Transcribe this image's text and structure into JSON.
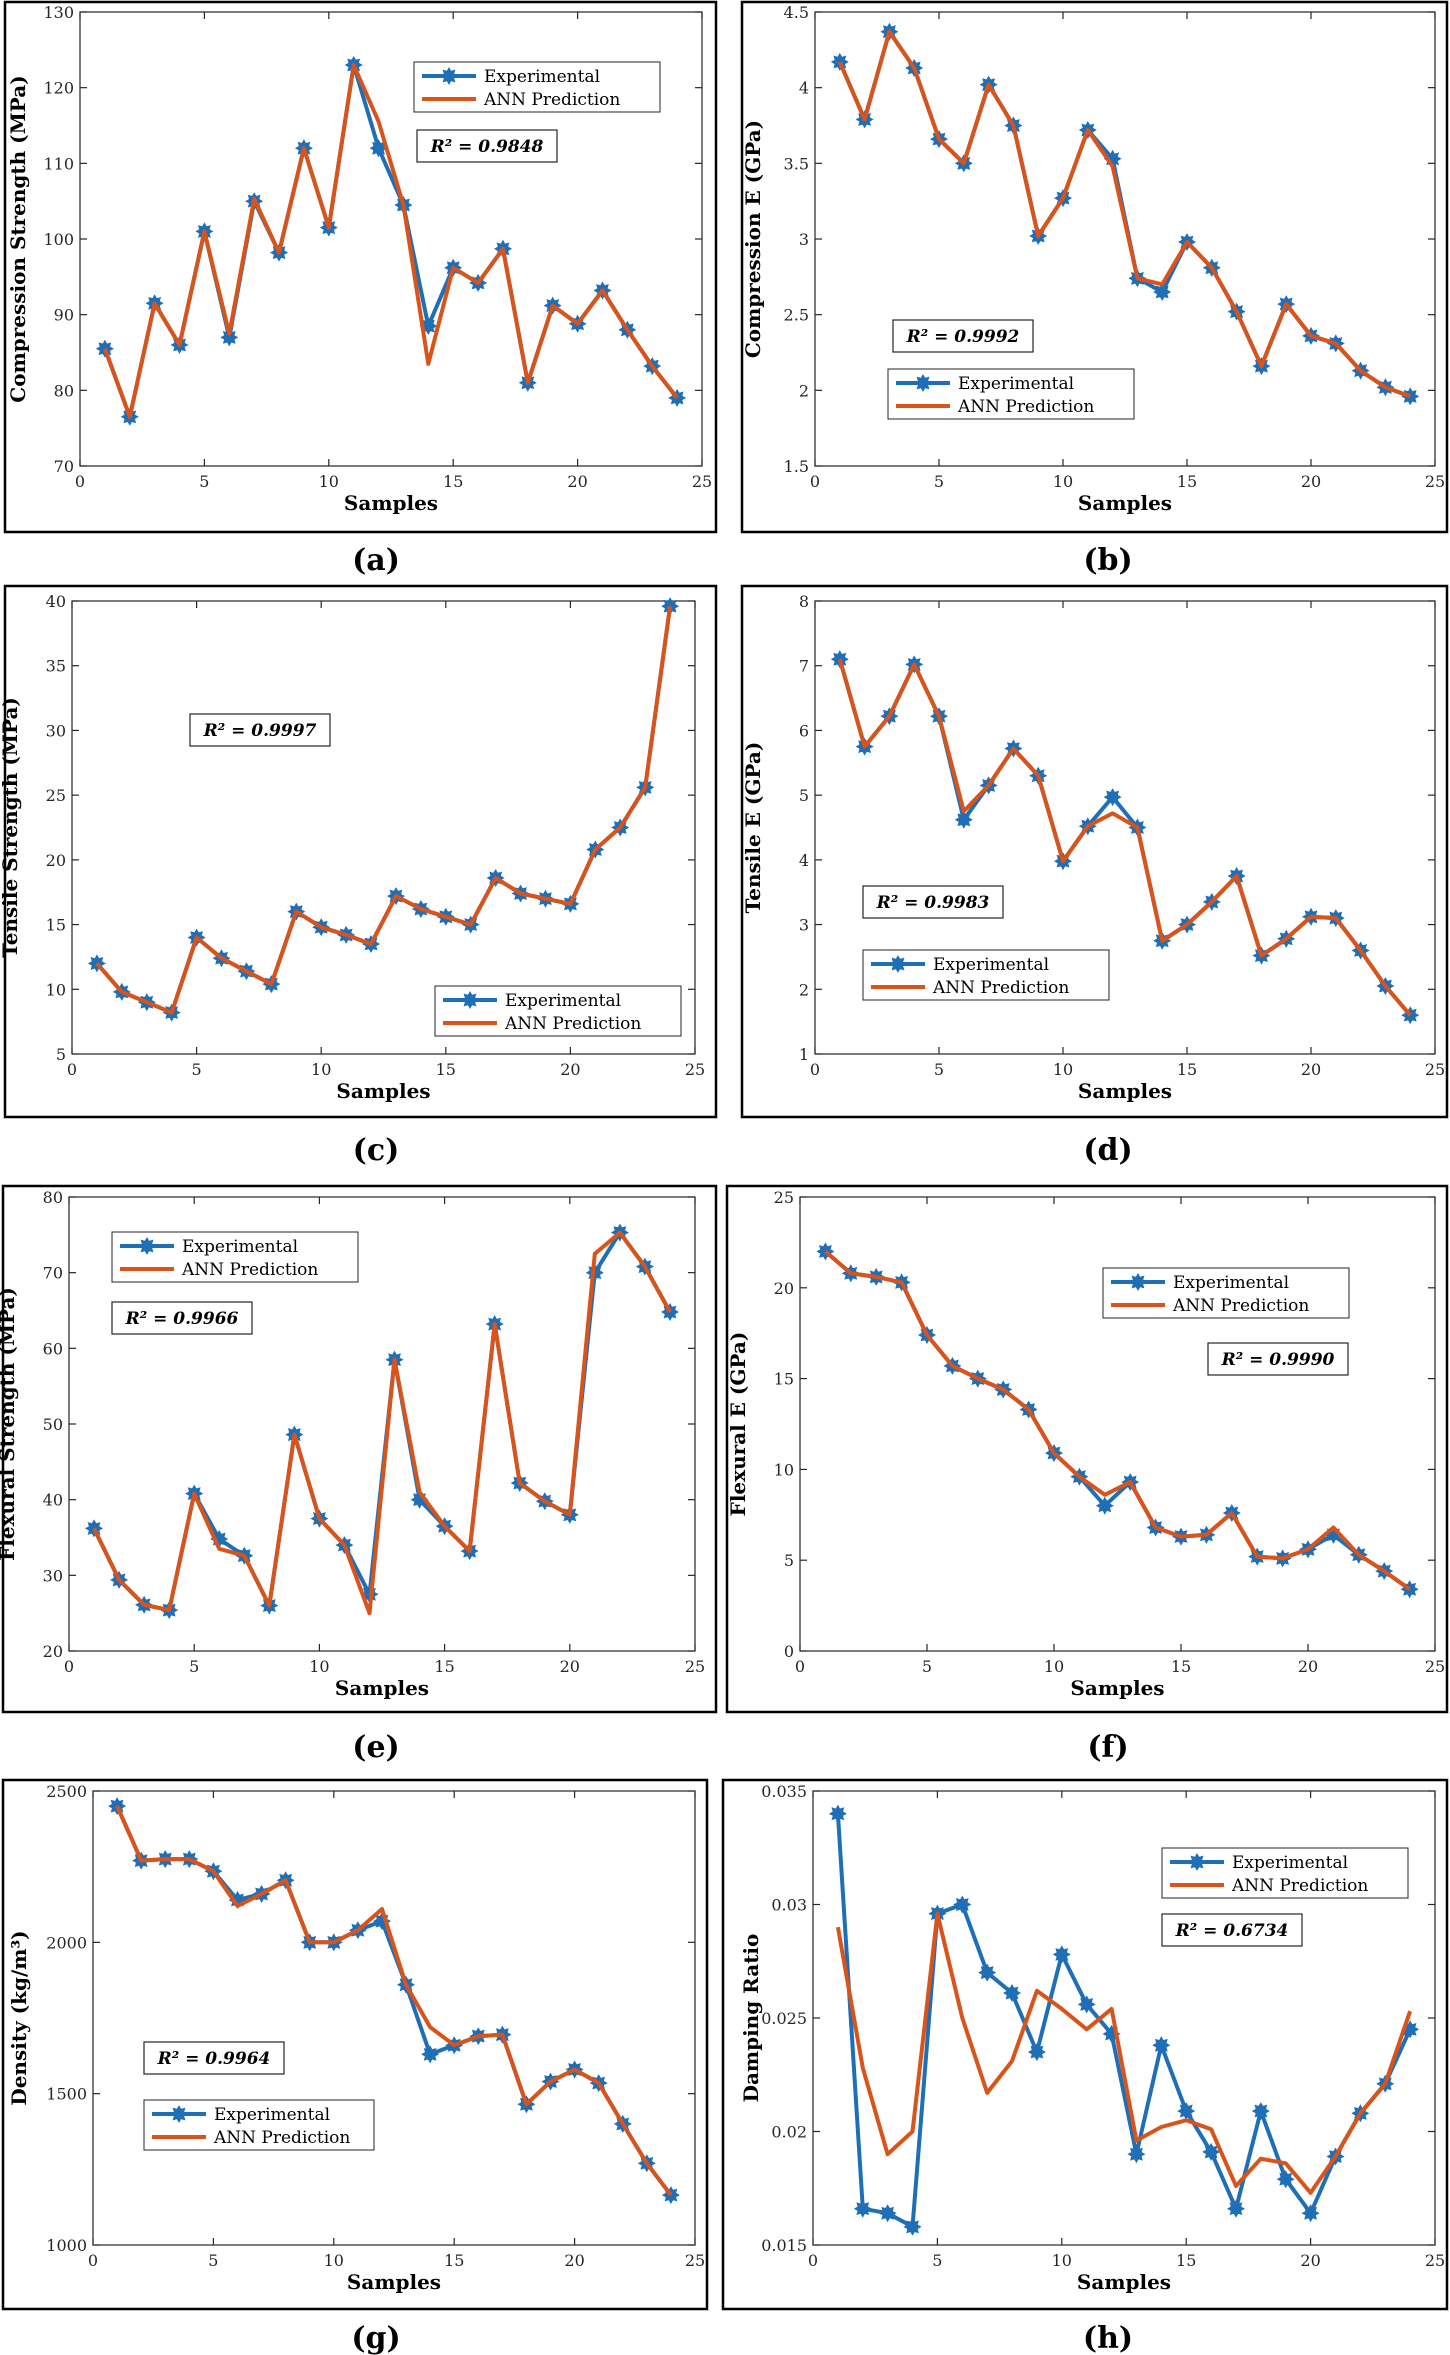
{
  "colors": {
    "experimental": "#1f6fb8",
    "ann": "#d9541a",
    "axis": "#262626"
  },
  "chart_data": [
    {
      "type": "line",
      "panel": "(a)",
      "xlabel": "Samples",
      "ylabel": "Compression Strength (MPa)",
      "xlim": [
        0,
        25
      ],
      "ylim": [
        70,
        130
      ],
      "xticks": [
        0,
        5,
        10,
        15,
        20,
        25
      ],
      "yticks": [
        70,
        80,
        90,
        100,
        110,
        120,
        130
      ],
      "r2": "R² = 0.9848",
      "legend_position": "top-right",
      "x": [
        1,
        2,
        3,
        4,
        5,
        6,
        7,
        8,
        9,
        10,
        11,
        12,
        13,
        14,
        15,
        16,
        17,
        18,
        19,
        20,
        21,
        22,
        23,
        24
      ],
      "series": [
        {
          "name": "Experimental",
          "values": [
            85.5,
            76.5,
            91.5,
            86,
            101,
            87,
            105,
            98.2,
            112,
            101.5,
            123,
            112,
            104.5,
            88.5,
            96.2,
            94.2,
            98.7,
            81,
            91.2,
            88.8,
            93.2,
            88,
            83.2,
            79
          ]
        },
        {
          "name": "ANN Prediction",
          "values": [
            85.5,
            76.5,
            91.5,
            86,
            101,
            87.5,
            105.3,
            98.2,
            112,
            101.5,
            123,
            115.5,
            104.5,
            83.5,
            96.2,
            94.2,
            98.7,
            81,
            91.2,
            88.8,
            93.2,
            88,
            83.2,
            79
          ]
        }
      ]
    },
    {
      "type": "line",
      "panel": "(b)",
      "xlabel": "Samples",
      "ylabel": "Compression E (GPa)",
      "xlim": [
        0,
        25
      ],
      "ylim": [
        1.5,
        4.5
      ],
      "xticks": [
        0,
        5,
        10,
        15,
        20,
        25
      ],
      "yticks": [
        1.5,
        2,
        2.5,
        3,
        3.5,
        4,
        4.5
      ],
      "r2": "R² = 0.9992",
      "legend_position": "bottom-left",
      "x": [
        1,
        2,
        3,
        4,
        5,
        6,
        7,
        8,
        9,
        10,
        11,
        12,
        13,
        14,
        15,
        16,
        17,
        18,
        19,
        20,
        21,
        22,
        23,
        24
      ],
      "series": [
        {
          "name": "Experimental",
          "values": [
            4.17,
            3.79,
            4.37,
            4.13,
            3.66,
            3.5,
            4.02,
            3.75,
            3.02,
            3.27,
            3.72,
            3.53,
            2.74,
            2.65,
            2.98,
            2.81,
            2.52,
            2.16,
            2.57,
            2.36,
            2.31,
            2.13,
            2.02,
            1.96
          ]
        },
        {
          "name": "ANN Prediction",
          "values": [
            4.17,
            3.79,
            4.37,
            4.13,
            3.66,
            3.5,
            4.02,
            3.75,
            3.02,
            3.27,
            3.72,
            3.48,
            2.74,
            2.7,
            2.98,
            2.81,
            2.52,
            2.16,
            2.57,
            2.36,
            2.31,
            2.13,
            2.02,
            1.96
          ]
        }
      ]
    },
    {
      "type": "line",
      "panel": "(c)",
      "xlabel": "Samples",
      "ylabel": "Tensile Strength (MPa)",
      "xlim": [
        0,
        25
      ],
      "ylim": [
        5,
        40
      ],
      "xticks": [
        0,
        5,
        10,
        15,
        20,
        25
      ],
      "yticks": [
        5,
        10,
        15,
        20,
        25,
        30,
        35,
        40
      ],
      "r2": "R² = 0.9997",
      "legend_position": "bottom-right",
      "x": [
        1,
        2,
        3,
        4,
        5,
        6,
        7,
        8,
        9,
        10,
        11,
        12,
        13,
        14,
        15,
        16,
        17,
        18,
        19,
        20,
        21,
        22,
        23,
        24
      ],
      "series": [
        {
          "name": "Experimental",
          "values": [
            12,
            9.8,
            9,
            8.2,
            14,
            12.4,
            11.4,
            10.4,
            16,
            14.8,
            14.2,
            13.5,
            17.2,
            16.2,
            15.6,
            15,
            18.6,
            17.4,
            17,
            16.6,
            20.8,
            22.5,
            25.6,
            39.6
          ]
        },
        {
          "name": "ANN Prediction",
          "values": [
            12,
            9.8,
            9,
            8.2,
            14,
            12.4,
            11.4,
            10.4,
            16,
            14.8,
            14.2,
            13.5,
            17.2,
            16.2,
            15.6,
            15,
            18.6,
            17.4,
            17,
            16.6,
            20.8,
            22.5,
            25.6,
            39.6
          ]
        }
      ]
    },
    {
      "type": "line",
      "panel": "(d)",
      "xlabel": "Samples",
      "ylabel": "Tensile E (GPa)",
      "xlim": [
        0,
        25
      ],
      "ylim": [
        1,
        8
      ],
      "xticks": [
        0,
        5,
        10,
        15,
        20,
        25
      ],
      "yticks": [
        1,
        2,
        3,
        4,
        5,
        6,
        7,
        8
      ],
      "r2": "R² = 0.9983",
      "legend_position": "bottom-left",
      "x": [
        1,
        2,
        3,
        4,
        5,
        6,
        7,
        8,
        9,
        10,
        11,
        12,
        13,
        14,
        15,
        16,
        17,
        18,
        19,
        20,
        21,
        22,
        23,
        24
      ],
      "series": [
        {
          "name": "Experimental",
          "values": [
            7.1,
            5.75,
            6.22,
            7.02,
            6.22,
            4.62,
            5.15,
            5.72,
            5.3,
            3.98,
            4.52,
            4.97,
            4.5,
            2.75,
            3,
            3.35,
            3.75,
            2.52,
            2.78,
            3.12,
            3.1,
            2.6,
            2.05,
            1.6
          ]
        },
        {
          "name": "ANN Prediction",
          "values": [
            7.1,
            5.75,
            6.22,
            7.02,
            6.22,
            4.75,
            5.15,
            5.72,
            5.3,
            3.98,
            4.52,
            4.72,
            4.5,
            2.75,
            3,
            3.35,
            3.75,
            2.52,
            2.78,
            3.12,
            3.1,
            2.6,
            2.05,
            1.6
          ]
        }
      ]
    },
    {
      "type": "line",
      "panel": "(e)",
      "xlabel": "Samples",
      "ylabel": "Flexural Strength (MPa)",
      "xlim": [
        0,
        25
      ],
      "ylim": [
        20,
        80
      ],
      "xticks": [
        0,
        5,
        10,
        15,
        20,
        25
      ],
      "yticks": [
        20,
        30,
        40,
        50,
        60,
        70,
        80
      ],
      "r2": "R² = 0.9966",
      "legend_position": "top-left",
      "x": [
        1,
        2,
        3,
        4,
        5,
        6,
        7,
        8,
        9,
        10,
        11,
        12,
        13,
        14,
        15,
        16,
        17,
        18,
        19,
        20,
        21,
        22,
        23,
        24
      ],
      "series": [
        {
          "name": "Experimental",
          "values": [
            36.2,
            29.4,
            26.1,
            25.4,
            40.8,
            34.8,
            32.6,
            26,
            48.6,
            37.5,
            34,
            27.5,
            58.5,
            40,
            36.5,
            33.2,
            63.2,
            42.2,
            39.8,
            38,
            70,
            75.3,
            70.8,
            64.8
          ]
        },
        {
          "name": "ANN Prediction",
          "values": [
            36.2,
            29.4,
            26.1,
            25.4,
            40.8,
            33.5,
            32.6,
            26,
            48.6,
            37.5,
            34,
            25,
            58.5,
            41,
            36.5,
            33.2,
            63.2,
            42.2,
            39.8,
            38,
            72.5,
            75.3,
            70.8,
            64.8
          ]
        }
      ]
    },
    {
      "type": "line",
      "panel": "(f)",
      "xlabel": "Samples",
      "ylabel": "Flexural E (GPa)",
      "xlim": [
        0,
        25
      ],
      "ylim": [
        0,
        25
      ],
      "xticks": [
        0,
        5,
        10,
        15,
        20,
        25
      ],
      "yticks": [
        0,
        5,
        10,
        15,
        20,
        25
      ],
      "r2": "R² = 0.9990",
      "legend_position": "top-right",
      "x": [
        1,
        2,
        3,
        4,
        5,
        6,
        7,
        8,
        9,
        10,
        11,
        12,
        13,
        14,
        15,
        16,
        17,
        18,
        19,
        20,
        21,
        22,
        23,
        24
      ],
      "series": [
        {
          "name": "Experimental",
          "values": [
            22,
            20.8,
            20.6,
            20.3,
            17.4,
            15.7,
            15,
            14.4,
            13.3,
            10.9,
            9.6,
            8,
            9.3,
            6.8,
            6.3,
            6.4,
            7.6,
            5.2,
            5.1,
            5.6,
            6.4,
            5.3,
            4.4,
            3.4
          ]
        },
        {
          "name": "ANN Prediction",
          "values": [
            22,
            20.8,
            20.6,
            20.3,
            17.4,
            15.7,
            15,
            14.4,
            13.3,
            10.9,
            9.6,
            8.6,
            9.3,
            6.8,
            6.3,
            6.4,
            7.6,
            5.2,
            5.1,
            5.6,
            6.8,
            5.3,
            4.4,
            3.4
          ]
        }
      ]
    },
    {
      "type": "line",
      "panel": "(g)",
      "xlabel": "Samples",
      "ylabel": "Density (kg/m³)",
      "xlim": [
        0,
        25
      ],
      "ylim": [
        1000,
        2500
      ],
      "xticks": [
        0,
        5,
        10,
        15,
        20,
        25
      ],
      "yticks": [
        1000,
        1500,
        2000,
        2500
      ],
      "r2": "R² = 0.9964",
      "legend_position": "bottom-left",
      "x": [
        1,
        2,
        3,
        4,
        5,
        6,
        7,
        8,
        9,
        10,
        11,
        12,
        13,
        14,
        15,
        16,
        17,
        18,
        19,
        20,
        21,
        22,
        23,
        24
      ],
      "series": [
        {
          "name": "Experimental",
          "values": [
            2450,
            2270,
            2275,
            2275,
            2235,
            2140,
            2160,
            2205,
            2000,
            2000,
            2040,
            2070,
            1860,
            1630,
            1660,
            1690,
            1695,
            1465,
            1540,
            1580,
            1535,
            1400,
            1270,
            1165
          ]
        },
        {
          "name": "ANN Prediction",
          "values": [
            2450,
            2270,
            2275,
            2275,
            2235,
            2120,
            2160,
            2205,
            2000,
            2000,
            2040,
            2110,
            1860,
            1720,
            1660,
            1690,
            1695,
            1465,
            1540,
            1580,
            1535,
            1400,
            1270,
            1165
          ]
        }
      ]
    },
    {
      "type": "line",
      "panel": "(h)",
      "xlabel": "Samples",
      "ylabel": "Damping Ratio",
      "xlim": [
        0,
        25
      ],
      "ylim": [
        0.015,
        0.035
      ],
      "xticks": [
        0,
        5,
        10,
        15,
        20,
        25
      ],
      "yticks": [
        0.015,
        0.02,
        0.025,
        0.03,
        0.035
      ],
      "r2": "R² = 0.6734",
      "legend_position": "top-right",
      "x": [
        1,
        2,
        3,
        4,
        5,
        6,
        7,
        8,
        9,
        10,
        11,
        12,
        13,
        14,
        15,
        16,
        17,
        18,
        19,
        20,
        21,
        22,
        23,
        24
      ],
      "series": [
        {
          "name": "Experimental",
          "values": [
            0.034,
            0.0166,
            0.0164,
            0.0158,
            0.0296,
            0.03,
            0.027,
            0.0261,
            0.0235,
            0.0278,
            0.0256,
            0.0243,
            0.019,
            0.0238,
            0.0209,
            0.0191,
            0.0166,
            0.0209,
            0.0179,
            0.0164,
            0.0189,
            0.0208,
            0.0221,
            0.0245
          ]
        },
        {
          "name": "ANN Prediction",
          "values": [
            0.029,
            0.0228,
            0.019,
            0.02,
            0.0296,
            0.025,
            0.0217,
            0.0231,
            0.0262,
            0.0254,
            0.0245,
            0.0254,
            0.0196,
            0.0202,
            0.0205,
            0.0201,
            0.0176,
            0.0188,
            0.0186,
            0.0173,
            0.0189,
            0.0208,
            0.0221,
            0.0253
          ]
        }
      ]
    }
  ]
}
